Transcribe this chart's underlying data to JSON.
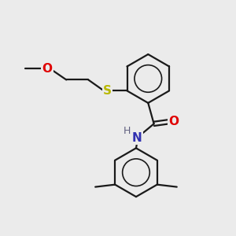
{
  "background_color": "#ebebeb",
  "bond_color": "#1a1a1a",
  "atom_colors": {
    "O": "#e00000",
    "N": "#3030b0",
    "S": "#b8b800",
    "H": "#606080",
    "C": "#1a1a1a"
  },
  "figsize": [
    3.0,
    3.0
  ],
  "dpi": 100
}
